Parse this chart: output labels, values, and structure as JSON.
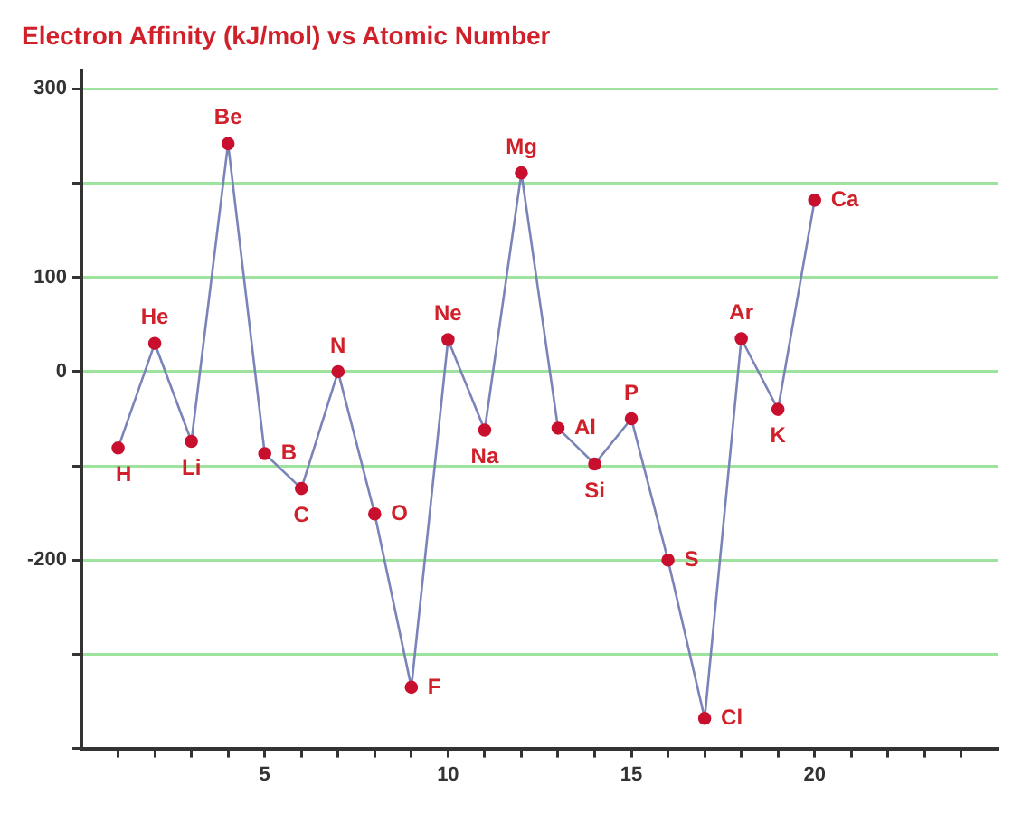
{
  "chart_data": {
    "type": "line",
    "title": "Electron Affinity (kJ/mol) vs Atomic Number",
    "x": [
      1,
      2,
      3,
      4,
      5,
      6,
      7,
      8,
      9,
      10,
      11,
      12,
      13,
      14,
      15,
      16,
      17,
      18,
      19,
      20
    ],
    "series": [
      {
        "color": "#7a84b8",
        "values": [
          -81,
          30,
          -74,
          242,
          -87,
          -124,
          0,
          -151,
          -335,
          34,
          -62,
          211,
          -60,
          -98,
          -50,
          -200,
          -368,
          35,
          -40,
          182
        ]
      }
    ],
    "xlim": [
      0,
      25
    ],
    "xticks": [
      {
        "value": 1,
        "label": null
      },
      {
        "value": 2,
        "label": null
      },
      {
        "value": 3,
        "label": null
      },
      {
        "value": 4,
        "label": null
      },
      5,
      {
        "value": 6,
        "label": null
      },
      {
        "value": 7,
        "label": null
      },
      {
        "value": 8,
        "label": null
      },
      {
        "value": 9,
        "label": null
      },
      10,
      {
        "value": 11,
        "label": null
      },
      {
        "value": 12,
        "label": null
      },
      {
        "value": 13,
        "label": null
      },
      {
        "value": 14,
        "label": null
      },
      15,
      {
        "value": 16,
        "label": null
      },
      {
        "value": 17,
        "label": null
      },
      {
        "value": 18,
        "label": null
      },
      {
        "value": 19,
        "label": null
      },
      20,
      {
        "value": 21,
        "label": null
      },
      {
        "value": 22,
        "label": null
      },
      {
        "value": 23,
        "label": null
      },
      {
        "value": 24,
        "label": null
      }
    ],
    "ylim": [
      -400,
      320
    ],
    "yticks": [
      {
        "value": -400,
        "label": null
      },
      {
        "value": -300,
        "label": null
      },
      -200,
      {
        "value": -100,
        "label": null
      },
      0,
      100,
      {
        "value": 200,
        "label": null
      },
      300
    ],
    "grid": "y",
    "legend": false,
    "marker": "circle",
    "line_style": "solid",
    "annotations": [
      {
        "text": "H",
        "x": 1,
        "y": -81
      },
      {
        "text": "He",
        "x": 2,
        "y": 30
      },
      {
        "text": "Li",
        "x": 3,
        "y": -74
      },
      {
        "text": "Be",
        "x": 4,
        "y": 242
      },
      {
        "text": "B",
        "x": 5,
        "y": -87
      },
      {
        "text": "C",
        "x": 6,
        "y": -124
      },
      {
        "text": "N",
        "x": 7,
        "y": 0
      },
      {
        "text": "O",
        "x": 8,
        "y": -151
      },
      {
        "text": "F",
        "x": 9,
        "y": -335
      },
      {
        "text": "Ne",
        "x": 10,
        "y": 34
      },
      {
        "text": "Na",
        "x": 11,
        "y": -62
      },
      {
        "text": "Mg",
        "x": 12,
        "y": 211
      },
      {
        "text": "Al",
        "x": 13,
        "y": -60
      },
      {
        "text": "Si",
        "x": 14,
        "y": -98
      },
      {
        "text": "P",
        "x": 15,
        "y": -50
      },
      {
        "text": "S",
        "x": 16,
        "y": -200
      },
      {
        "text": "Cl",
        "x": 17,
        "y": -368
      },
      {
        "text": "Ar",
        "x": 18,
        "y": 35
      },
      {
        "text": "K",
        "x": 19,
        "y": -40
      },
      {
        "text": "Ca",
        "x": 20,
        "y": 182
      }
    ]
  }
}
